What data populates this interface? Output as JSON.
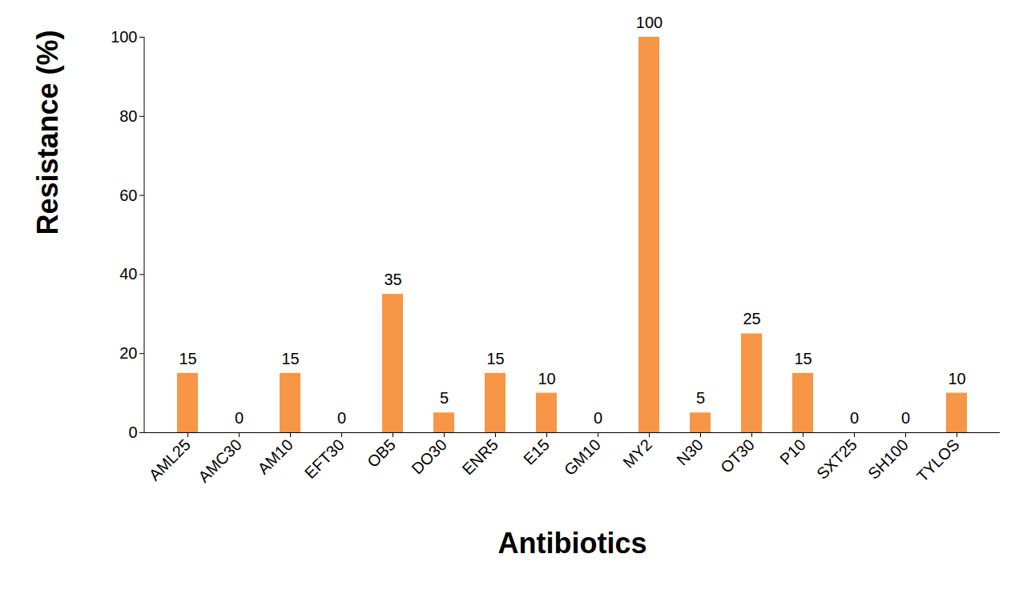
{
  "chart_data": {
    "type": "bar",
    "categories": [
      "AML25",
      "AMC30",
      "AM10",
      "EFT30",
      "OB5",
      "DO30",
      "ENR5",
      "E15",
      "GM10",
      "MY2",
      "N30",
      "OT30",
      "P10",
      "SXT25",
      "SH100",
      "TYLOS"
    ],
    "values": [
      15,
      0,
      15,
      0,
      35,
      5,
      15,
      10,
      0,
      100,
      5,
      25,
      15,
      0,
      0,
      10
    ],
    "color": "#f79646",
    "x_label": "Antibiotics",
    "y_label": "Resistance (%)",
    "ylim": [
      0,
      100
    ],
    "yticks": [
      0,
      20,
      40,
      60,
      80,
      100
    ],
    "grid": false,
    "data_labels": true
  }
}
